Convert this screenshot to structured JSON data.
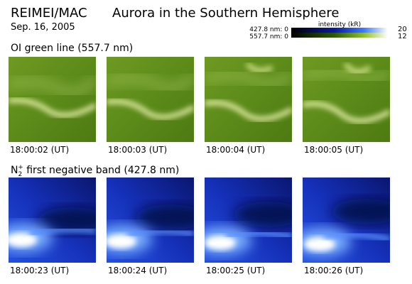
{
  "header": {
    "instrument": "REIMEI/MAC",
    "title": "Aurora in the Southern Hemisphere",
    "date": "Sep. 16, 2005"
  },
  "colorbar": {
    "label": "intensity (kR)",
    "rows": [
      {
        "name": "427.8 nm: 0",
        "max": 20
      },
      {
        "name": "557.7 nm: 0",
        "max": 12
      }
    ]
  },
  "green_section": {
    "title": "OI green line (557.7 nm)",
    "panels": [
      "18:00:02 (UT)",
      "18:00:03 (UT)",
      "18:00:04 (UT)",
      "18:00:05 (UT)"
    ]
  },
  "blue_section": {
    "title": {
      "base": "N",
      "subscript": "2",
      "superscript": "+",
      "rest": " first negative band (427.8 nm)"
    },
    "panels": [
      "18:00:23 (UT)",
      "18:00:24 (UT)",
      "18:00:25 (UT)",
      "18:00:26 (UT)"
    ]
  }
}
